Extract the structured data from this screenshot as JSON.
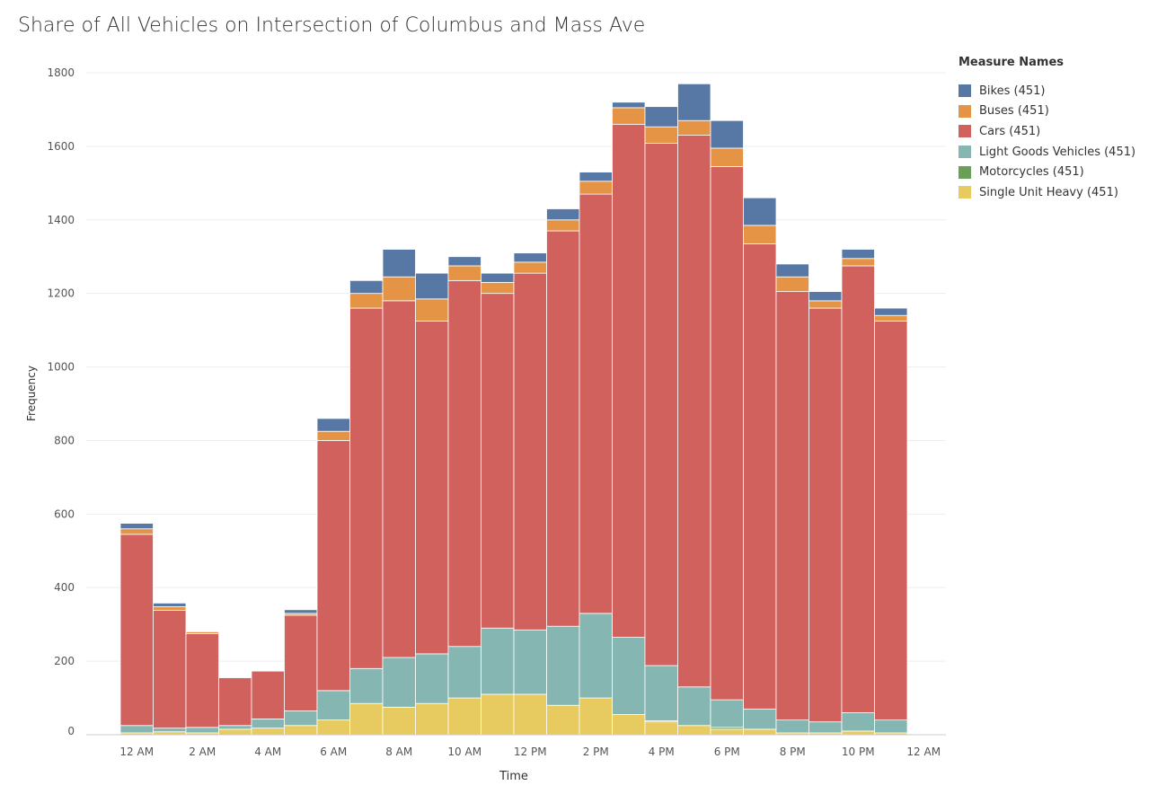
{
  "title": "Share of All Vehicles on Intersection of Columbus and Mass Ave",
  "legend": {
    "title": "Measure Names",
    "items": [
      {
        "label": "Bikes (451)",
        "color": "#5778a4"
      },
      {
        "label": "Buses (451)",
        "color": "#e49444"
      },
      {
        "label": "Cars (451)",
        "color": "#d1615d"
      },
      {
        "label": "Light Goods Vehicles (451)",
        "color": "#85b6b2"
      },
      {
        "label": "Motorcycles (451)",
        "color": "#6a9f58"
      },
      {
        "label": "Single Unit Heavy (451)",
        "color": "#e7ca60"
      }
    ]
  },
  "chart_data": {
    "type": "bar",
    "stacked": true,
    "xlabel": "Time",
    "ylabel": "Frequency",
    "ylim": [
      0,
      1800
    ],
    "yticks": [
      0,
      200,
      400,
      600,
      800,
      1000,
      1200,
      1400,
      1600,
      1800
    ],
    "grid": true,
    "legend_position": "top-right",
    "x_tick_labels": [
      "12 AM",
      "2 AM",
      "4 AM",
      "6 AM",
      "8 AM",
      "10 AM",
      "12 PM",
      "2 PM",
      "4 PM",
      "6 PM",
      "8 PM",
      "10 PM",
      "12 AM"
    ],
    "categories": [
      "12 AM",
      "1 AM",
      "2 AM",
      "3 AM",
      "4 AM",
      "5 AM",
      "6 AM",
      "7 AM",
      "8 AM",
      "9 AM",
      "10 AM",
      "11 AM",
      "12 PM",
      "1 PM",
      "2 PM",
      "3 PM",
      "4 PM",
      "5 PM",
      "6 PM",
      "7 PM",
      "8 PM",
      "9 PM",
      "10 PM",
      "11 PM"
    ],
    "series": [
      {
        "name": "Single Unit Heavy (451)",
        "color": "#e7ca60",
        "values": [
          5,
          8,
          5,
          15,
          18,
          25,
          40,
          85,
          75,
          85,
          100,
          110,
          110,
          80,
          100,
          55,
          35,
          25,
          15,
          15,
          5,
          5,
          10,
          5
        ]
      },
      {
        "name": "Motorcycles (451)",
        "color": "#6a9f58",
        "values": [
          0,
          0,
          0,
          0,
          0,
          0,
          0,
          0,
          0,
          0,
          0,
          0,
          0,
          0,
          0,
          0,
          3,
          0,
          5,
          0,
          0,
          0,
          0,
          0
        ]
      },
      {
        "name": "Light Goods Vehicles (451)",
        "color": "#85b6b2",
        "values": [
          20,
          10,
          15,
          10,
          25,
          40,
          80,
          95,
          135,
          135,
          140,
          180,
          175,
          215,
          230,
          210,
          150,
          105,
          75,
          55,
          35,
          30,
          50,
          35
        ]
      },
      {
        "name": "Cars (451)",
        "color": "#d1615d",
        "values": [
          520,
          320,
          255,
          130,
          130,
          260,
          680,
          980,
          970,
          905,
          995,
          910,
          970,
          1075,
          1140,
          1395,
          1420,
          1500,
          1450,
          1265,
          1165,
          1125,
          1215,
          1085
        ]
      },
      {
        "name": "Buses (451)",
        "color": "#e49444",
        "values": [
          15,
          10,
          5,
          0,
          0,
          5,
          25,
          40,
          65,
          60,
          40,
          30,
          30,
          30,
          35,
          45,
          45,
          40,
          50,
          50,
          40,
          20,
          20,
          15
        ]
      },
      {
        "name": "Bikes (451)",
        "color": "#5778a4",
        "values": [
          15,
          10,
          0,
          0,
          0,
          10,
          35,
          35,
          75,
          70,
          25,
          25,
          25,
          30,
          25,
          15,
          55,
          100,
          75,
          75,
          35,
          25,
          25,
          20
        ]
      }
    ]
  }
}
